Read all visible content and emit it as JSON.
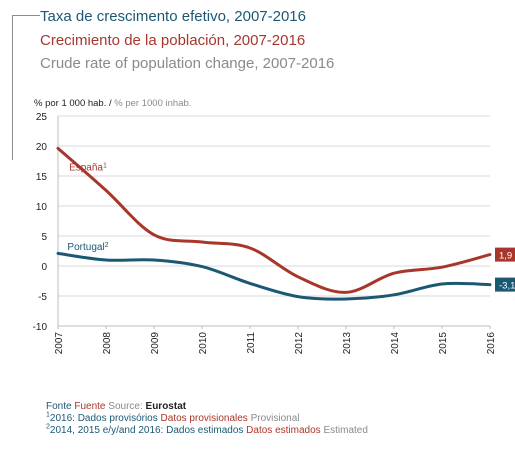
{
  "titles": {
    "pt": "Taxa de crescimento efetivo, 2007-2016",
    "es": "Crecimiento de la población, 2007-2016",
    "en": "Crude rate of population change, 2007-2016"
  },
  "units": {
    "primary": "% por 1 000 hab. / ",
    "secondary": "% per 1000 inhab."
  },
  "chart_data": {
    "type": "line",
    "x": [
      "2007",
      "2008",
      "2009",
      "2010",
      "2011",
      "2012",
      "2013",
      "2014",
      "2015",
      "2016"
    ],
    "ylim": [
      -10,
      25
    ],
    "yticks": [
      "-10",
      "-5",
      "0",
      "5",
      "10",
      "15",
      "20",
      "25"
    ],
    "grid": true,
    "series": [
      {
        "name": "España",
        "note": "1",
        "color": "#a8362b",
        "values": [
          19.6,
          12.6,
          5.2,
          4.0,
          3.0,
          -1.8,
          -4.4,
          -1.2,
          -0.2,
          1.9
        ],
        "end_label": "1,9"
      },
      {
        "name": "Portugal",
        "note": "2",
        "color": "#1c5874",
        "values": [
          2.1,
          1.0,
          1.0,
          -0.1,
          -2.9,
          -5.1,
          -5.5,
          -4.8,
          -3.0,
          -3.1
        ],
        "end_label": "-3,1"
      }
    ]
  },
  "footer": {
    "source": {
      "pt": "Fonte",
      "es": "Fuente",
      "en": "Source:",
      "name": "Eurostat"
    },
    "note1": {
      "num": "1",
      "pt": "2016: Dados provisórios",
      "es": "Datos provisionales",
      "en": "Provisional"
    },
    "note2": {
      "num": "2",
      "pt": "2014, 2015 e/y/and 2016: Dados estimados",
      "es": "Datos estimados",
      "en": "Estimated"
    }
  }
}
